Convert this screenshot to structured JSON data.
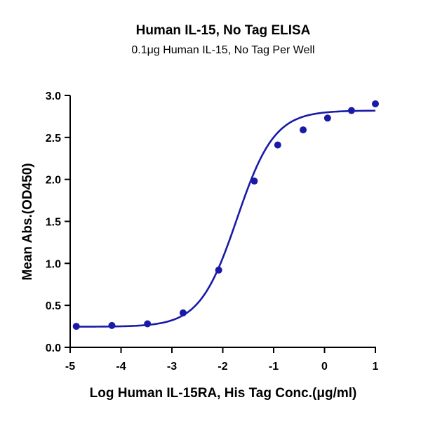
{
  "chart_data": {
    "type": "scatter",
    "title": "Human IL-15, No Tag ELISA",
    "subtitle": "0.1μg Human IL-15, No Tag Per Well",
    "xlabel": "Log Human IL-15RA, His Tag Conc.(μg/ml)",
    "ylabel": "Mean Abs.(OD450)",
    "xlim": [
      -5,
      1
    ],
    "ylim": [
      0,
      3
    ],
    "x_ticks": [
      "-5",
      "-4",
      "-3",
      "-2",
      "-1",
      "0",
      "1"
    ],
    "y_ticks": [
      "0.0",
      "0.5",
      "1.0",
      "1.5",
      "2.0",
      "2.5",
      "3.0"
    ],
    "grid": false,
    "series": [
      {
        "color": "#1a1aa8",
        "x": [
          -4.88,
          -4.18,
          -3.48,
          -2.78,
          -2.08,
          -1.38,
          -0.92,
          -0.42,
          0.06,
          0.53,
          1.0
        ],
        "y": [
          0.25,
          0.26,
          0.28,
          0.41,
          0.92,
          1.98,
          2.41,
          2.59,
          2.73,
          2.82,
          2.9
        ]
      }
    ],
    "fit": {
      "model": "4PL",
      "bottom": 0.245,
      "top": 2.82,
      "log_ec50": -1.72,
      "hill": 1.18,
      "color": "#1a1aa8"
    }
  }
}
